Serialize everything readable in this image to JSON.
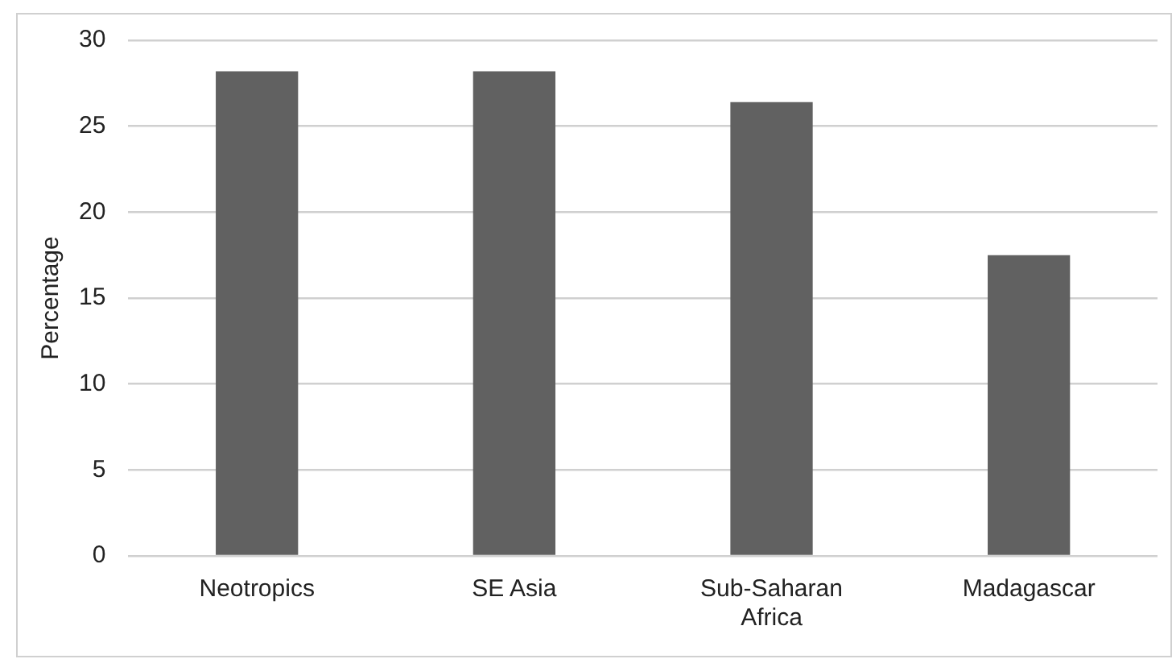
{
  "chart_data": {
    "type": "bar",
    "ylabel": "Percentage",
    "categories": [
      "Neotropics",
      "SE Asia",
      "Sub-Saharan Africa",
      "Madagascar"
    ],
    "values": [
      28.2,
      28.2,
      26.4,
      17.5
    ],
    "color": "#616161",
    "ylim": [
      0,
      30
    ],
    "yticks": [
      0,
      5,
      10,
      15,
      20,
      25,
      30
    ],
    "grid": "y",
    "legend": false
  }
}
